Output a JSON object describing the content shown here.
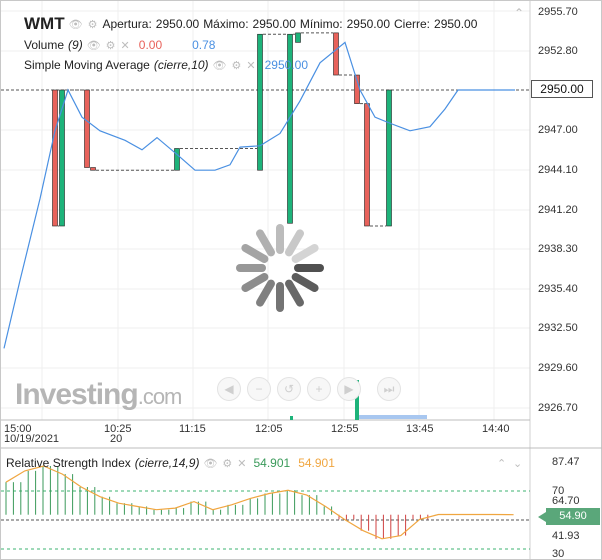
{
  "symbol": "WMT",
  "ohlc": {
    "open_label": "Apertura:",
    "open_value": "2950.00",
    "high_label": "Máximo:",
    "high_value": "2950.00",
    "low_label": "Mínimo:",
    "low_value": "2950.00",
    "close_label": "Cierre:",
    "close_value": "2950.00"
  },
  "volume": {
    "label": "Volume",
    "param": "(9)",
    "value_red": "0.00",
    "value_blue": "0.78"
  },
  "sma": {
    "label": "Simple Moving Average",
    "param": "(cierre,10)",
    "value": "2950.00"
  },
  "price_axis": [
    "2955.70",
    "2952.80",
    "2950.00",
    "2947.00",
    "2944.10",
    "2941.20",
    "2938.30",
    "2935.40",
    "2932.50",
    "2929.60",
    "2926.70"
  ],
  "current_price": "2950.00",
  "time_axis": {
    "first_time": "15:00",
    "first_date": "10/19/2021",
    "labels": [
      "10:25",
      "11:15",
      "12:05",
      "12:55",
      "13:45",
      "14:40"
    ],
    "date_mark": "20"
  },
  "rsi": {
    "label": "Relative Strength Index",
    "param": "(cierre,14,9)",
    "value_green": "54.901",
    "value_orange": "54.901",
    "axis": [
      "87.47",
      "70",
      "64.70",
      "41.93",
      "30"
    ],
    "badge": "54.90"
  },
  "logo": {
    "main": "Investing",
    "suffix": ".com"
  },
  "icons": {
    "visibility": "eye-icon",
    "settings": "gear-icon",
    "remove": "close-icon",
    "collapse": "chevron-up-icon"
  },
  "colors": {
    "up": "#1db37a",
    "down": "#e8625b",
    "sma": "#4a90e2",
    "rsi": "#f0a640",
    "badge": "#5aa77a"
  },
  "chart_data": {
    "type": "candlestick",
    "sma_line_color": "#4a90e2",
    "candles": [
      {
        "o": 2950.0,
        "h": 2950.0,
        "l": 2940.0,
        "c": 2940.0
      },
      {
        "o": 2940.0,
        "h": 2950.0,
        "l": 2940.0,
        "c": 2950.0
      },
      {
        "o": 2950.0,
        "h": 2950.0,
        "l": 2944.3,
        "c": 2944.3
      },
      {
        "o": 2944.3,
        "h": 2944.3,
        "l": 2944.1,
        "c": 2944.1
      },
      {
        "o": 2944.1,
        "h": 2945.7,
        "l": 2944.1,
        "c": 2945.7
      },
      {
        "o": 2944.1,
        "h": 2954.1,
        "l": 2944.1,
        "c": 2954.1
      },
      {
        "o": 2940.2,
        "h": 2954.1,
        "l": 2940.2,
        "c": 2954.1
      },
      {
        "o": 2953.5,
        "h": 2954.2,
        "l": 2953.5,
        "c": 2954.2
      },
      {
        "o": 2954.2,
        "h": 2954.2,
        "l": 2951.1,
        "c": 2951.1
      },
      {
        "o": 2951.1,
        "h": 2951.1,
        "l": 2949.0,
        "c": 2949.0
      },
      {
        "o": 2949.0,
        "h": 2949.0,
        "l": 2940.0,
        "c": 2940.0
      },
      {
        "o": 2940.0,
        "h": 2950.0,
        "l": 2940.0,
        "c": 2950.0
      }
    ],
    "rsi_values": [
      75,
      82,
      85,
      80,
      72,
      66,
      62,
      60,
      58,
      59,
      63,
      58,
      61,
      65,
      68,
      70,
      67,
      60,
      52,
      45,
      40,
      42,
      52,
      55,
      55,
      55,
      55,
      54.9
    ]
  }
}
